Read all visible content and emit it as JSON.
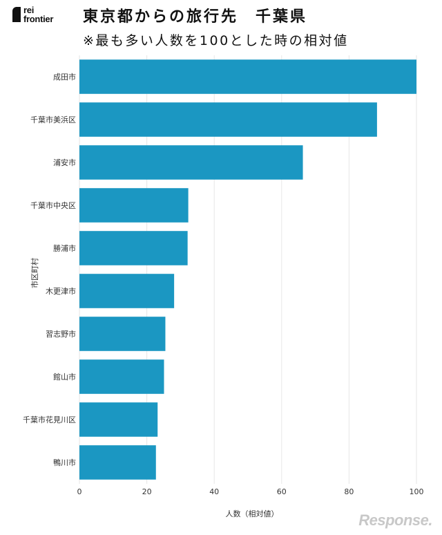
{
  "logo": {
    "line1": "rei",
    "line2": "frontier"
  },
  "title": "東京都からの旅行先　千葉県",
  "subtitle": "※最も多い人数を100とした時の相対値",
  "watermark": "Response.",
  "colors": {
    "bar": "#1b97c2",
    "grid": "#e6e6e6",
    "text": "#333333"
  },
  "chart_data": {
    "type": "bar",
    "orientation": "horizontal",
    "title": "東京都からの旅行先　千葉県",
    "subtitle": "※最も多い人数を100とした時の相対値",
    "xlabel": "人数（相対値）",
    "ylabel": "市区町村",
    "xlim": [
      0,
      100
    ],
    "xticks": [
      0,
      20,
      40,
      60,
      80,
      100
    ],
    "grid": "vertical",
    "categories": [
      "成田市",
      "千葉市美浜区",
      "浦安市",
      "千葉市中央区",
      "勝浦市",
      "木更津市",
      "習志野市",
      "館山市",
      "千葉市花見川区",
      "鴨川市"
    ],
    "values": [
      100,
      88.3,
      66.3,
      32.3,
      32.1,
      28.1,
      25.5,
      25.1,
      23.2,
      22.7
    ]
  }
}
